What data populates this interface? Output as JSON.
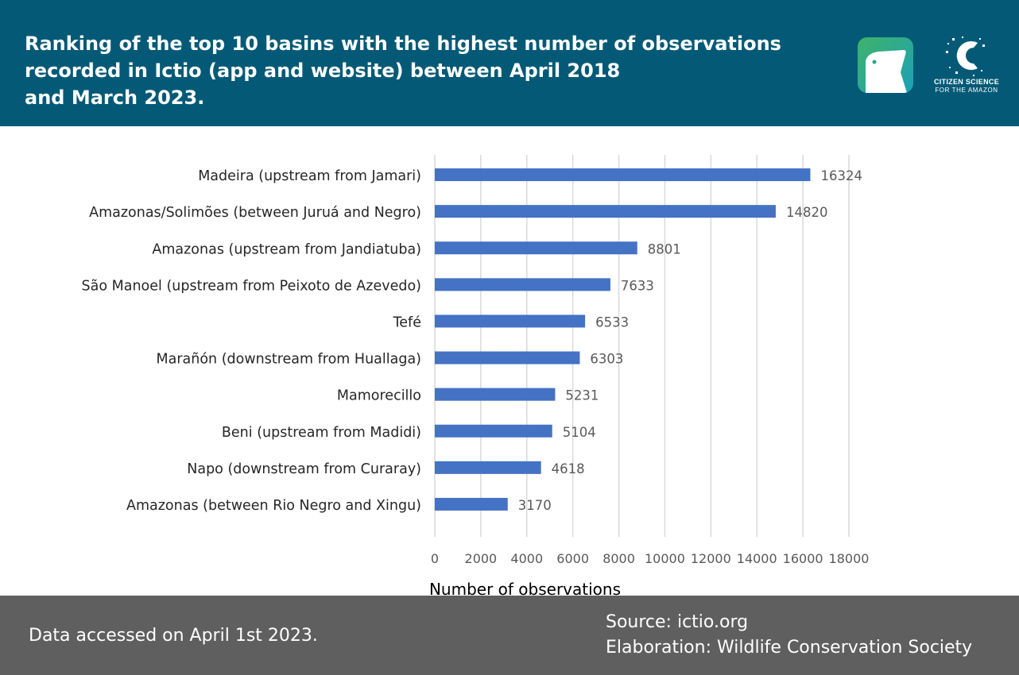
{
  "header": {
    "title_lines": [
      "Ranking of the top 10 basins with the highest number of observations",
      "recorded in Ictio (app and website) between April 2018",
      "and March 2023."
    ],
    "app_logo_icon": "ictio-fish-icon",
    "partner_logo": {
      "icon": "citizen-science-c-icon",
      "line1": "CITIZEN SCIENCE",
      "line2": "FOR THE AMAZON"
    }
  },
  "chart_data": {
    "type": "bar",
    "orientation": "horizontal",
    "title": "",
    "xlabel": "Number of observations",
    "ylabel": "",
    "categories": [
      "Madeira (upstream from Jamari)",
      "Amazonas/Solimões (between Juruá and Negro)",
      "Amazonas (upstream from Jandiatuba)",
      "São Manoel (upstream from Peixoto de Azevedo)",
      "Tefé",
      "Marañón (downstream from Huallaga)",
      "Mamorecillo",
      "Beni (upstream from Madidi)",
      "Napo (downstream from Curaray)",
      "Amazonas (between Rio Negro and Xingu)"
    ],
    "values": [
      16324,
      14820,
      8801,
      7633,
      6533,
      6303,
      5231,
      5104,
      4618,
      3170
    ],
    "xlim": [
      0,
      18000
    ],
    "xticks": [
      "0",
      "2000",
      "4000",
      "6000",
      "8000",
      "10000",
      "12000",
      "14000",
      "16000",
      "18000"
    ],
    "grid": true,
    "data_labels": true,
    "bar_color": "#4472c4"
  },
  "footer": {
    "note": "Data accessed on April 1st 2023.",
    "source": "Source: ictio.org",
    "elaboration": "Elaboration: Wildlife Conservation Society"
  },
  "colors": {
    "header_bg": "#045a76",
    "footer_bg": "#5f5f5f",
    "bar": "#4472c4",
    "gridline": "#d9d9d9"
  }
}
